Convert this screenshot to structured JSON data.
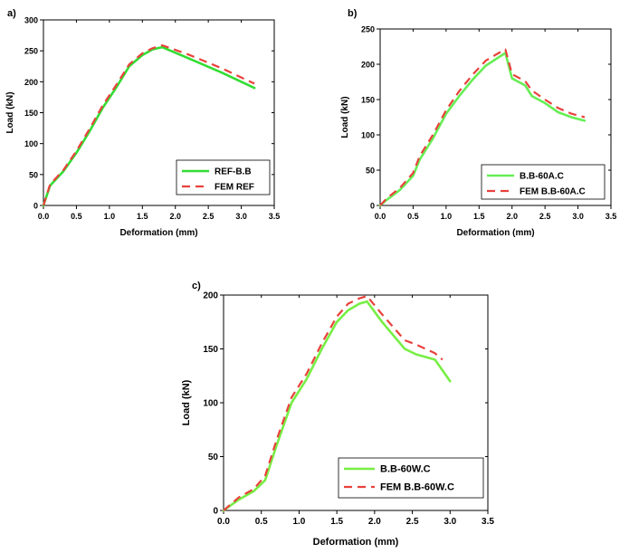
{
  "chart_data": [
    {
      "id": "a",
      "panel_label": "a)",
      "type": "line",
      "xlabel": "Deformation (mm)",
      "ylabel": "Load (kN)",
      "xlim": [
        0,
        3.5
      ],
      "ylim": [
        0,
        300
      ],
      "xticks": [
        0.0,
        0.5,
        1.0,
        1.5,
        2.0,
        2.5,
        3.0,
        3.5
      ],
      "yticks": [
        0,
        50,
        100,
        150,
        200,
        250,
        300
      ],
      "xtick_labels": [
        "0.0",
        "0.5",
        "1.0",
        "1.5",
        "2.0",
        "2.5",
        "3.0",
        "3.5"
      ],
      "ytick_labels": [
        "0",
        "50",
        "100",
        "150",
        "200",
        "250",
        "300"
      ],
      "legend_position": "bottom-right",
      "series": [
        {
          "name": "REF-B.B",
          "color": "#33dd33",
          "style": "solid",
          "x": [
            0,
            0.1,
            0.3,
            0.5,
            0.7,
            0.9,
            1.1,
            1.3,
            1.5,
            1.65,
            1.8,
            2.2,
            2.7,
            3.2
          ],
          "y": [
            0,
            32,
            55,
            85,
            120,
            158,
            190,
            225,
            243,
            252,
            256,
            238,
            215,
            190
          ]
        },
        {
          "name": "FEM REF",
          "color": "#e8423c",
          "style": "dashed",
          "x": [
            0,
            0.1,
            0.3,
            0.5,
            0.7,
            0.9,
            1.1,
            1.3,
            1.5,
            1.65,
            1.8,
            2.2,
            2.7,
            3.2
          ],
          "y": [
            0,
            34,
            57,
            88,
            124,
            162,
            194,
            228,
            246,
            254,
            259,
            244,
            222,
            197
          ]
        }
      ]
    },
    {
      "id": "b",
      "panel_label": "b)",
      "type": "line",
      "xlabel": "Deformation (mm)",
      "ylabel": "Load (kN)",
      "xlim": [
        0,
        3.5
      ],
      "ylim": [
        0,
        250
      ],
      "xticks": [
        0.0,
        0.5,
        1.0,
        1.5,
        2.0,
        2.5,
        3.0,
        3.5
      ],
      "yticks": [
        0,
        50,
        100,
        150,
        200,
        250
      ],
      "xtick_labels": [
        "0.0",
        "0.5",
        "1.0",
        "1.5",
        "2.0",
        "2.5",
        "3.0",
        "3.5"
      ],
      "ytick_labels": [
        "0",
        "50",
        "100",
        "150",
        "200",
        "250"
      ],
      "legend_position": "bottom-right",
      "series": [
        {
          "name": "B.B-60A.C",
          "color": "#66ee55",
          "style": "solid",
          "x": [
            0,
            0.1,
            0.3,
            0.5,
            0.6,
            0.8,
            1.0,
            1.2,
            1.4,
            1.6,
            1.8,
            1.9,
            2.0,
            2.2,
            2.3,
            2.5,
            2.7,
            2.9,
            3.1
          ],
          "y": [
            0,
            8,
            22,
            42,
            65,
            95,
            130,
            155,
            178,
            198,
            210,
            216,
            180,
            170,
            155,
            145,
            132,
            125,
            120
          ]
        },
        {
          "name": "FEM B.B-60A.C",
          "color": "#e8423c",
          "style": "dashed",
          "x": [
            0,
            0.1,
            0.3,
            0.5,
            0.6,
            0.8,
            1.0,
            1.2,
            1.4,
            1.6,
            1.8,
            1.9,
            2.0,
            2.2,
            2.3,
            2.5,
            2.7,
            2.9,
            3.1
          ],
          "y": [
            0,
            10,
            25,
            46,
            70,
            100,
            135,
            162,
            185,
            205,
            216,
            221,
            186,
            176,
            163,
            150,
            138,
            130,
            125
          ]
        }
      ]
    },
    {
      "id": "c",
      "panel_label": "c)",
      "type": "line",
      "xlabel": "Deformation (mm)",
      "ylabel": "Load (kN)",
      "xlim": [
        0,
        3.5
      ],
      "ylim": [
        0,
        200
      ],
      "xticks": [
        0.0,
        0.5,
        1.0,
        1.5,
        2.0,
        2.5,
        3.0,
        3.5
      ],
      "yticks": [
        0,
        50,
        100,
        150,
        200
      ],
      "xtick_labels": [
        "0.0",
        "0.5",
        "1.0",
        "1.5",
        "2.0",
        "2.5",
        "3.0",
        "3.5"
      ],
      "ytick_labels": [
        "0",
        "50",
        "100",
        "150",
        "200"
      ],
      "legend_position": "bottom-right",
      "series": [
        {
          "name": "B.B-60W.C",
          "color": "#77ee44",
          "style": "solid",
          "x": [
            0,
            0.2,
            0.4,
            0.55,
            0.7,
            0.9,
            1.1,
            1.3,
            1.5,
            1.65,
            1.8,
            1.9,
            2.1,
            2.4,
            2.55,
            2.8,
            3.0
          ],
          "y": [
            0,
            10,
            18,
            28,
            60,
            100,
            122,
            150,
            175,
            186,
            192,
            194,
            175,
            150,
            145,
            140,
            120
          ]
        },
        {
          "name": "FEM B.B-60W.C",
          "color": "#e8423c",
          "style": "dashed",
          "x": [
            0,
            0.2,
            0.4,
            0.55,
            0.7,
            0.9,
            1.1,
            1.3,
            1.5,
            1.65,
            1.8,
            1.9,
            2.1,
            2.4,
            2.55,
            2.8,
            2.9
          ],
          "y": [
            0,
            12,
            20,
            32,
            65,
            105,
            127,
            155,
            180,
            192,
            197,
            199,
            182,
            158,
            154,
            146,
            140
          ]
        }
      ]
    }
  ]
}
